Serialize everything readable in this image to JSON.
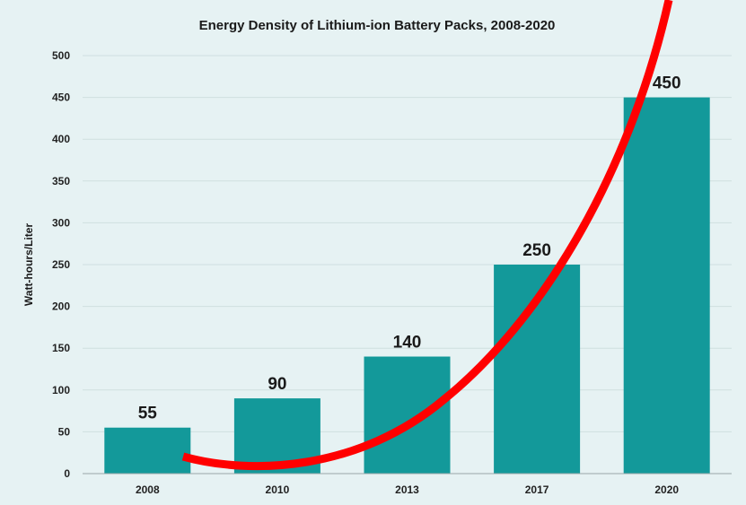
{
  "chart_data": {
    "type": "bar",
    "title": "Energy Density of Lithium-ion Battery Packs, 2008-2020",
    "xlabel": "",
    "ylabel": "Watt-hours/Liter",
    "categories": [
      "2008",
      "2010",
      "2013",
      "2017",
      "2020"
    ],
    "values": [
      55,
      90,
      140,
      250,
      450
    ],
    "data_labels": [
      "55",
      "90",
      "140",
      "250",
      "450"
    ],
    "ylim": [
      0,
      500
    ],
    "yticks": [
      0,
      50,
      100,
      150,
      200,
      250,
      300,
      350,
      400,
      450,
      500
    ],
    "grid": true,
    "legend": "none",
    "bar_color": "#13999a",
    "background_color": "#e6f2f3",
    "annotation": {
      "type": "hand-drawn exponential curve",
      "color": "#ff0000"
    }
  }
}
